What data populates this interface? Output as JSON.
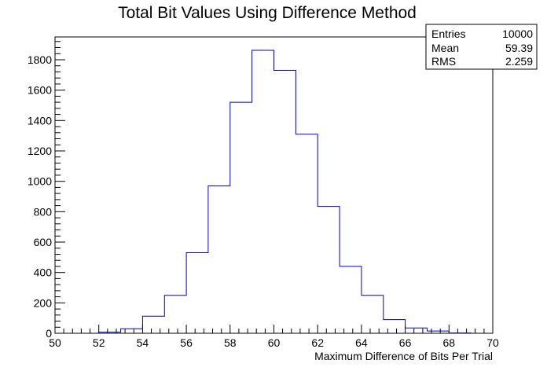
{
  "chart_data": {
    "type": "bar",
    "title": "Total Bit Values Using Difference Method",
    "xlabel": "Maximum Difference of Bits Per Trial",
    "ylabel": "",
    "xlim": [
      50,
      70
    ],
    "ylim": [
      0,
      1950
    ],
    "bin_width": 1,
    "bins": [
      {
        "x_low": 52,
        "count": 8
      },
      {
        "x_low": 53,
        "count": 30
      },
      {
        "x_low": 54,
        "count": 112
      },
      {
        "x_low": 55,
        "count": 250
      },
      {
        "x_low": 56,
        "count": 530
      },
      {
        "x_low": 57,
        "count": 970
      },
      {
        "x_low": 58,
        "count": 1520
      },
      {
        "x_low": 59,
        "count": 1862
      },
      {
        "x_low": 60,
        "count": 1730
      },
      {
        "x_low": 61,
        "count": 1310
      },
      {
        "x_low": 62,
        "count": 835
      },
      {
        "x_low": 63,
        "count": 440
      },
      {
        "x_low": 64,
        "count": 250
      },
      {
        "x_low": 65,
        "count": 90
      },
      {
        "x_low": 66,
        "count": 35
      },
      {
        "x_low": 67,
        "count": 15
      },
      {
        "x_low": 68,
        "count": 2
      }
    ],
    "x_ticks": [
      "50",
      "52",
      "54",
      "56",
      "58",
      "60",
      "62",
      "64",
      "66",
      "68",
      "70"
    ],
    "y_ticks": [
      "0",
      "200",
      "400",
      "600",
      "800",
      "1000",
      "1200",
      "1400",
      "1600",
      "1800"
    ],
    "grid": false,
    "legend": "none",
    "line_color": "#0000c8"
  },
  "stats_box": {
    "rows": [
      {
        "label": "Entries",
        "value": "10000"
      },
      {
        "label": "Mean",
        "value": "59.39"
      },
      {
        "label": "RMS",
        "value": "2.259"
      }
    ]
  }
}
